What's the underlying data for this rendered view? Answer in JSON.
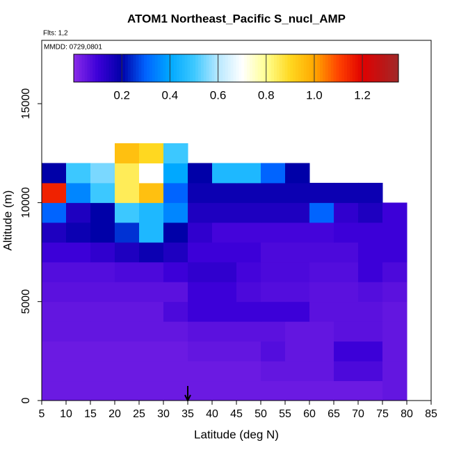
{
  "chart_data": {
    "type": "heatmap",
    "title": "ATOM1 Northeast_Pacific S_nucl_AMP",
    "flights": "Flts: 1,2",
    "dates": "MMDD: 0729,0801",
    "xlabel": "Latitude (deg N)",
    "ylabel": "Altitude (m)",
    "xlim": [
      5,
      85
    ],
    "ylim": [
      0,
      18200
    ],
    "xticks": [
      5,
      10,
      15,
      20,
      25,
      30,
      35,
      40,
      45,
      50,
      55,
      60,
      65,
      70,
      75,
      80,
      85
    ],
    "yticks": [
      0,
      5000,
      10000,
      15000
    ],
    "x_bins": [
      5,
      10,
      15,
      20,
      25,
      30,
      35,
      40,
      45,
      50,
      55,
      60,
      65,
      70,
      75,
      80
    ],
    "y_bins": [
      0,
      1000,
      2000,
      3000,
      4000,
      5000,
      6000,
      7000,
      8000,
      9000,
      10000,
      11000,
      12000,
      13000
    ],
    "z": [
      [
        0.04,
        0.04,
        0.04,
        0.04,
        0.04,
        0.04,
        0.04,
        0.04,
        0.04,
        0.04,
        0.04,
        0.04,
        0.04,
        0.04,
        0.05
      ],
      [
        0.04,
        0.04,
        0.04,
        0.04,
        0.04,
        0.04,
        0.04,
        0.04,
        0.04,
        0.05,
        0.05,
        0.05,
        0.08,
        0.08,
        0.05
      ],
      [
        0.04,
        0.04,
        0.04,
        0.04,
        0.04,
        0.04,
        0.05,
        0.05,
        0.05,
        0.07,
        0.05,
        0.05,
        0.1,
        0.1,
        0.05
      ],
      [
        0.05,
        0.05,
        0.05,
        0.05,
        0.05,
        0.05,
        0.06,
        0.06,
        0.06,
        0.06,
        0.05,
        0.05,
        0.06,
        0.06,
        0.05
      ],
      [
        0.05,
        0.05,
        0.05,
        0.05,
        0.05,
        0.08,
        0.1,
        0.1,
        0.1,
        0.1,
        0.1,
        0.06,
        0.06,
        0.06,
        0.05
      ],
      [
        0.06,
        0.06,
        0.06,
        0.06,
        0.06,
        0.06,
        0.1,
        0.1,
        0.08,
        0.07,
        0.07,
        0.06,
        0.06,
        0.07,
        0.06
      ],
      [
        0.07,
        0.07,
        0.07,
        0.08,
        0.08,
        0.1,
        0.12,
        0.12,
        0.09,
        0.08,
        0.08,
        0.07,
        0.07,
        0.1,
        0.08
      ],
      [
        0.1,
        0.1,
        0.12,
        0.15,
        0.18,
        0.15,
        0.1,
        0.1,
        0.1,
        0.08,
        0.08,
        0.08,
        0.08,
        0.1,
        0.1
      ],
      [
        0.15,
        0.18,
        0.2,
        0.25,
        0.45,
        0.2,
        0.12,
        0.09,
        0.09,
        0.09,
        0.09,
        0.09,
        0.1,
        0.1,
        0.1
      ],
      [
        0.3,
        0.15,
        0.2,
        0.5,
        0.45,
        0.35,
        0.15,
        0.15,
        0.15,
        0.15,
        0.15,
        0.3,
        0.12,
        0.15,
        0.1
      ],
      [
        1.15,
        0.35,
        0.5,
        0.85,
        0.95,
        0.3,
        0.18,
        0.18,
        0.18,
        0.18,
        0.18,
        0.18,
        0.18,
        0.18,
        null
      ],
      [
        0.2,
        0.5,
        0.55,
        0.85,
        0.7,
        0.4,
        0.2,
        0.45,
        0.45,
        0.3,
        0.2,
        null,
        null,
        null,
        null
      ],
      [
        null,
        null,
        null,
        0.95,
        0.9,
        0.5,
        null,
        null,
        null,
        null,
        null,
        null,
        null,
        null,
        null
      ]
    ],
    "colorbar_lim": [
      0,
      1.35
    ],
    "colorbar_ticks": [
      0.2,
      0.4,
      0.6,
      0.8,
      {
        "value": 1,
        "label": "1.0"
      },
      1.2
    ],
    "colormap": [
      {
        "value": 0,
        "color": "#8a2be8"
      },
      {
        "value": 0.1,
        "color": "#3c00d8"
      },
      {
        "value": 0.2,
        "color": "#0000a8"
      },
      {
        "value": 0.3,
        "color": "#0064ff"
      },
      {
        "value": 0.4,
        "color": "#00a8ff"
      },
      {
        "value": 0.5,
        "color": "#3cc8ff"
      },
      {
        "value": 0.6,
        "color": "#b8e8ff"
      },
      {
        "value": 0.7,
        "color": "#ffffff"
      },
      {
        "value": 0.8,
        "color": "#ffff90"
      },
      {
        "value": 0.9,
        "color": "#ffd820"
      },
      {
        "value": 1,
        "color": "#ffa800"
      },
      {
        "value": 1.1,
        "color": "#ff4400"
      },
      {
        "value": 1.2,
        "color": "#e00000"
      },
      {
        "value": 1.35,
        "color": "#a02828"
      }
    ],
    "arrow_x": 35
  }
}
